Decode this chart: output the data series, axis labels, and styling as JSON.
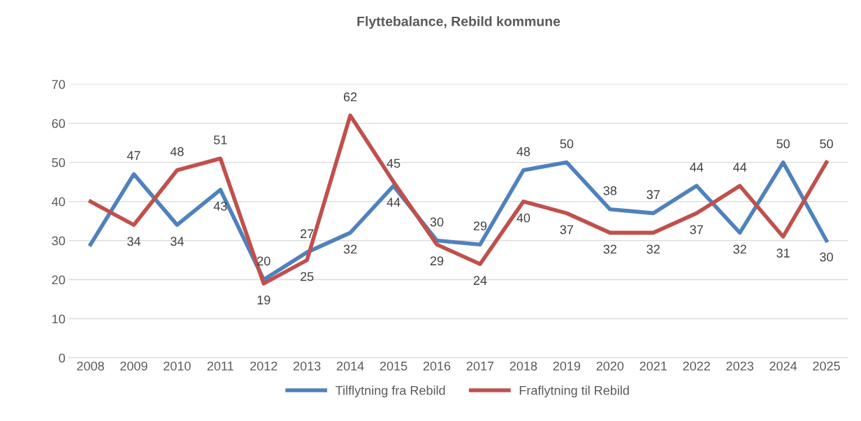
{
  "chart_data": {
    "type": "line",
    "title": "Flyttebalance, Rebild kommune",
    "categories": [
      "2008",
      "2009",
      "2010",
      "2011",
      "2012",
      "2013",
      "2014",
      "2015",
      "2016",
      "2017",
      "2018",
      "2019",
      "2020",
      "2021",
      "2022",
      "2023",
      "2024",
      "2025"
    ],
    "series": [
      {
        "name": "Tilflytning fra Rebild",
        "color": "#4f81bd",
        "values": [
          29,
          47,
          34,
          43,
          20,
          27,
          32,
          44,
          30,
          29,
          48,
          50,
          38,
          37,
          44,
          32,
          50,
          30
        ],
        "value_labels": [
          null,
          "47",
          "34",
          "43",
          "20",
          "27",
          "32",
          "44",
          "30",
          "29",
          "48",
          "50",
          "38",
          "37",
          "44",
          "32",
          "50",
          "30"
        ]
      },
      {
        "name": "Fraflytning til Rebild",
        "color": "#c0504d",
        "values": [
          40,
          34,
          48,
          51,
          19,
          25,
          62,
          45,
          29,
          24,
          40,
          37,
          32,
          32,
          37,
          44,
          31,
          50
        ],
        "value_labels": [
          null,
          "34",
          "48",
          "51",
          "19",
          "25",
          "62",
          "45",
          "29",
          "24",
          "40",
          "37",
          "32",
          "32",
          "37",
          "44",
          "31",
          "50"
        ]
      }
    ],
    "ylim": [
      0,
      70
    ],
    "yticks": [
      0,
      10,
      20,
      30,
      40,
      50,
      60,
      70
    ],
    "grid": "y",
    "legend": "bottom",
    "marker": "none",
    "line_style": "solid"
  }
}
